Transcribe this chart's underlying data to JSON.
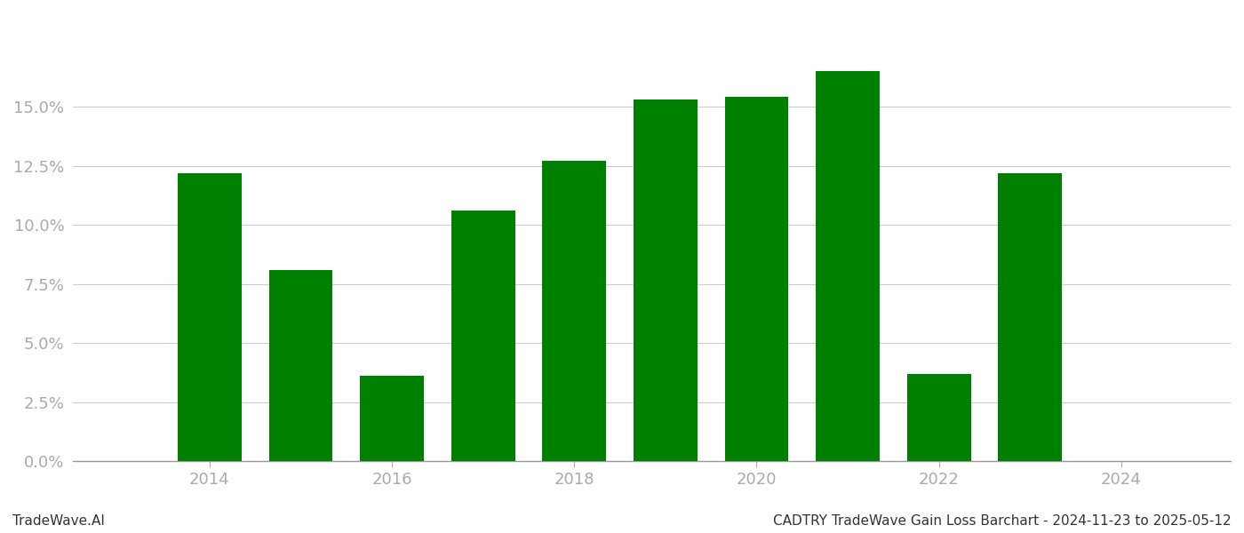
{
  "years": [
    2014,
    2015,
    2016,
    2017,
    2018,
    2019,
    2020,
    2021,
    2022,
    2023
  ],
  "values": [
    0.122,
    0.081,
    0.036,
    0.106,
    0.127,
    0.153,
    0.154,
    0.165,
    0.037,
    0.122
  ],
  "bar_color": "#008000",
  "background_color": "#ffffff",
  "ylim": [
    0,
    0.185
  ],
  "yticks": [
    0.0,
    0.025,
    0.05,
    0.075,
    0.1,
    0.125,
    0.15
  ],
  "xlim": [
    2012.5,
    2025.2
  ],
  "xticks": [
    2014,
    2016,
    2018,
    2020,
    2022,
    2024
  ],
  "grid_color": "#cccccc",
  "footer_left": "TradeWave.AI",
  "footer_right": "CADTRY TradeWave Gain Loss Barchart - 2024-11-23 to 2025-05-12",
  "footer_fontsize": 11,
  "tick_label_color": "#aaaaaa",
  "bar_width": 0.7
}
